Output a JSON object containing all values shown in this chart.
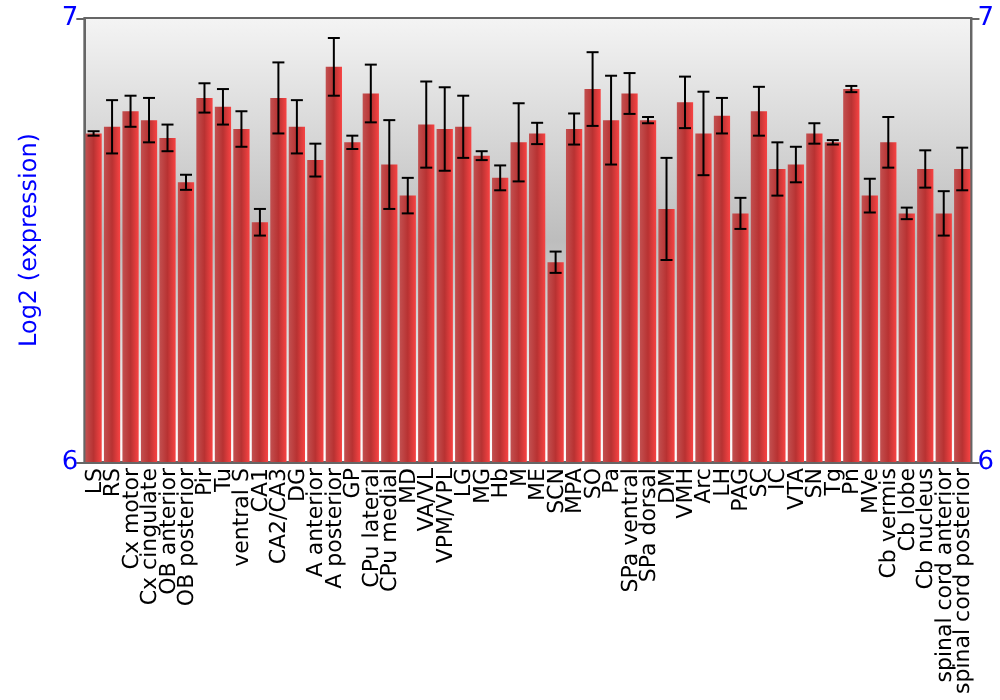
{
  "chart_data": {
    "type": "bar",
    "ylabel": "Log2 (expression)",
    "color": "#b83232",
    "categories": [
      "LS",
      "RS",
      "Cx motor",
      "Cx cingulate",
      "OB anterior",
      "OB posterior",
      "Pir",
      "Tu",
      "ventral S",
      "CA1",
      "CA2/CA3",
      "DG",
      "A anterior",
      "A posterior",
      "GP",
      "CPu lateral",
      "CPu medial",
      "MD",
      "VA/VL",
      "VPM/VPL",
      "LG",
      "MG",
      "Hb",
      "M",
      "ME",
      "SCN",
      "MPA",
      "SO",
      "Pa",
      "SPa ventral",
      "SPa dorsal",
      "DM",
      "VMH",
      "Arc",
      "LH",
      "PAG",
      "SC",
      "IC",
      "VTA",
      "SN",
      "Tg",
      "Pn",
      "MVe",
      "Cb vermis",
      "Cb lobe",
      "Cb nucleus",
      "spinal cord anterior",
      "spinal cord posterior"
    ],
    "values": [
      6.74,
      6.755,
      6.79,
      6.77,
      6.73,
      6.63,
      6.82,
      6.8,
      6.75,
      6.54,
      6.82,
      6.755,
      6.68,
      6.89,
      6.72,
      6.83,
      6.67,
      6.6,
      6.76,
      6.75,
      6.755,
      6.69,
      6.64,
      6.72,
      6.74,
      6.45,
      6.75,
      6.84,
      6.77,
      6.83,
      6.77,
      6.57,
      6.81,
      6.74,
      6.78,
      6.56,
      6.79,
      6.66,
      6.67,
      6.74,
      6.72,
      6.84,
      6.6,
      6.72,
      6.56,
      6.66,
      6.56,
      6.66
    ],
    "errors": [
      0.005,
      0.06,
      0.035,
      0.05,
      0.03,
      0.017,
      0.033,
      0.04,
      0.04,
      0.03,
      0.08,
      0.06,
      0.037,
      0.065,
      0.015,
      0.065,
      0.1,
      0.04,
      0.097,
      0.094,
      0.07,
      0.01,
      0.028,
      0.088,
      0.024,
      0.024,
      0.035,
      0.083,
      0.1,
      0.046,
      0.007,
      0.115,
      0.058,
      0.094,
      0.04,
      0.035,
      0.055,
      0.06,
      0.04,
      0.023,
      0.005,
      0.007,
      0.038,
      0.057,
      0.013,
      0.042,
      0.05,
      0.048
    ],
    "ylim": [
      6,
      7
    ],
    "yticks": [
      6,
      7
    ],
    "y2lim": [
      6,
      7
    ],
    "y2ticks": [
      6,
      7
    ],
    "grid": false
  }
}
